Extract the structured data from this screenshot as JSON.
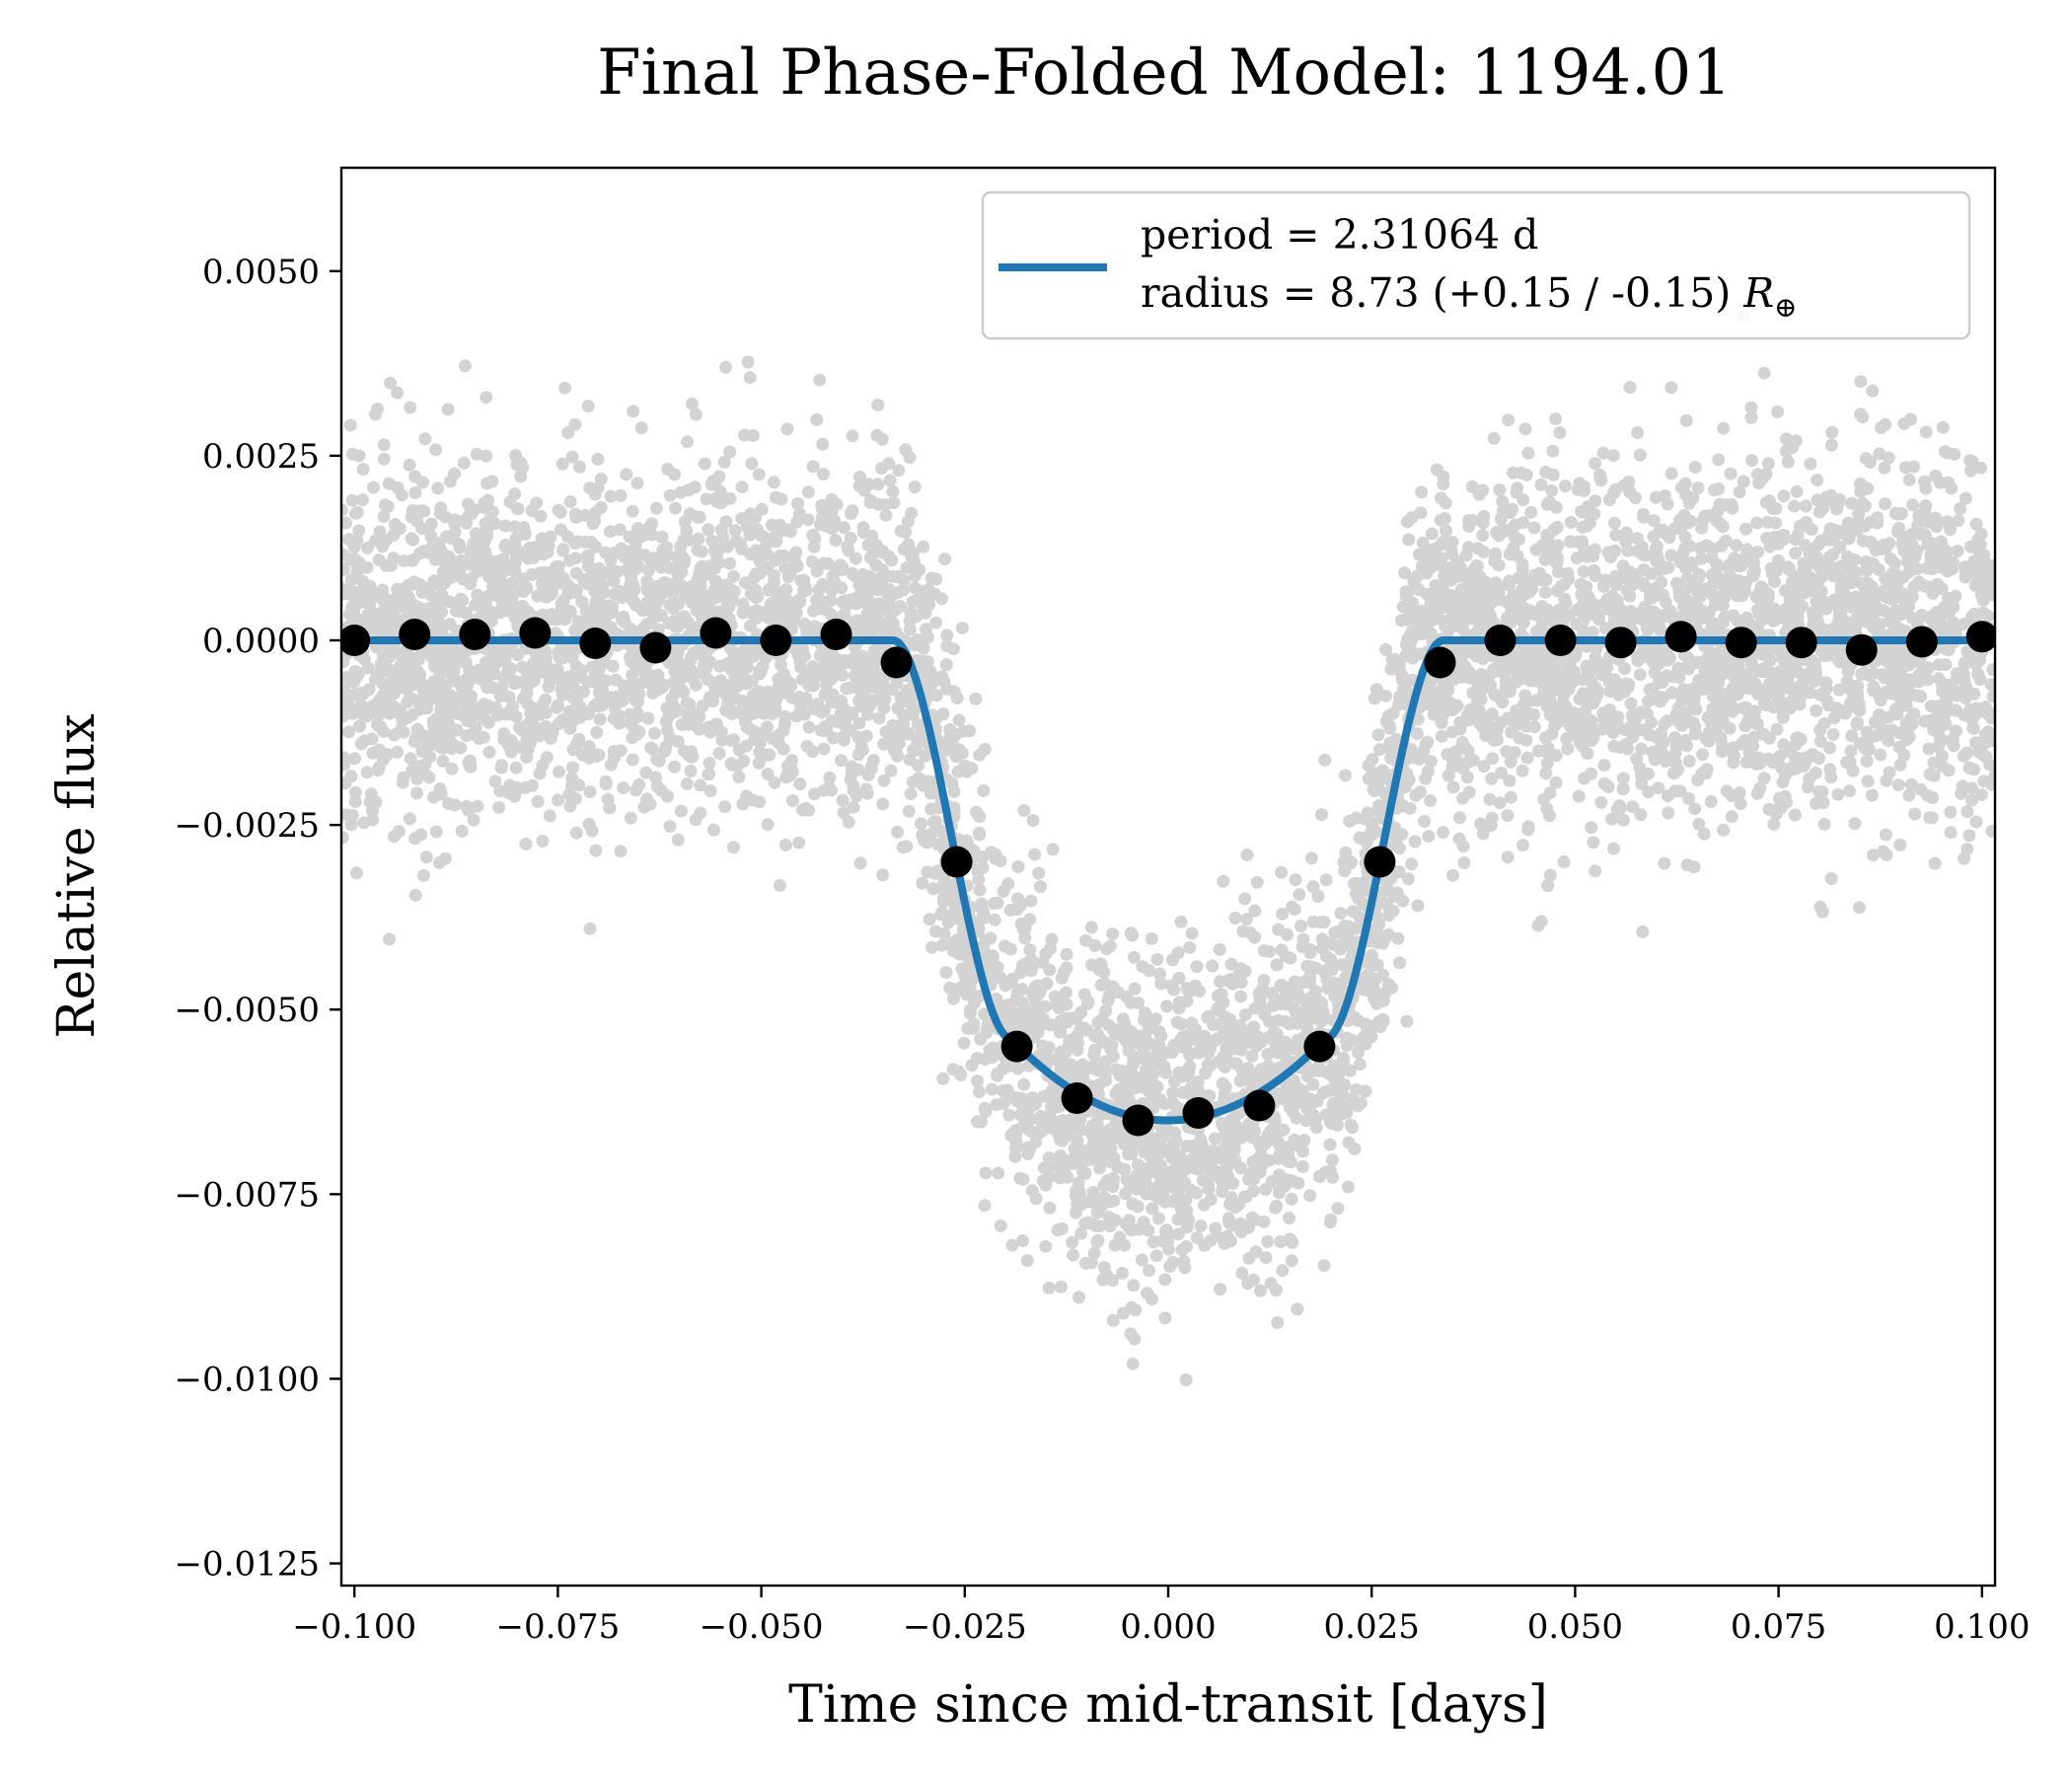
{
  "chart_data": {
    "type": "scatter",
    "title": "Final Phase-Folded Model: 1194.01",
    "xlabel": "Time since mid-transit [days]",
    "ylabel": "Relative flux",
    "xlim": [
      -0.1016,
      0.1016
    ],
    "ylim": [
      -0.0128,
      0.0064
    ],
    "xticks": [
      -0.1,
      -0.075,
      -0.05,
      -0.025,
      0.0,
      0.025,
      0.05,
      0.075,
      0.1
    ],
    "xtick_labels": [
      "−0.100",
      "−0.075",
      "−0.050",
      "−0.025",
      "0.000",
      "0.025",
      "0.050",
      "0.075",
      "0.100"
    ],
    "yticks": [
      0.005,
      0.0025,
      0.0,
      -0.0025,
      -0.005,
      -0.0075,
      -0.01,
      -0.0125
    ],
    "ytick_labels": [
      "0.0050",
      "0.0025",
      "0.0000",
      "−0.0025",
      "−0.0050",
      "−0.0075",
      "−0.0100",
      "−0.0125"
    ],
    "grid": false,
    "legend_position": "top-right",
    "legend": {
      "line1": "period = 2.31064 d",
      "line2": "radius = 8.73 (+0.15 / -0.15) ",
      "line2_symbol": "R",
      "line2_subscript": "⊕"
    },
    "model": {
      "depth": -0.0065,
      "half_width": 0.0338,
      "ingress": 0.0145,
      "color": "#1f77b4"
    },
    "raw_data": {
      "color": "#d3d3d3",
      "n_points": 6500,
      "noise_sigma": 0.0012,
      "seed": 1194
    },
    "binned": {
      "x": [
        -0.1,
        -0.0926,
        -0.0852,
        -0.0778,
        -0.0704,
        -0.063,
        -0.0556,
        -0.0482,
        -0.0408,
        -0.0334,
        -0.026,
        -0.0186,
        -0.0112,
        -0.0037,
        0.0037,
        0.0112,
        0.0186,
        0.026,
        0.0334,
        0.0408,
        0.0482,
        0.0556,
        0.063,
        0.0704,
        0.0778,
        0.0852,
        0.0926,
        0.1
      ],
      "y": [
        0.0,
        8e-05,
        8e-05,
        0.0001,
        -4e-05,
        -0.0001,
        0.0001,
        0.0,
        8e-05,
        -0.0003,
        -0.003,
        -0.0055,
        -0.0062,
        -0.0065,
        -0.0064,
        -0.0063,
        -0.0055,
        -0.003,
        -0.0003,
        0.0,
        0.0,
        -3e-05,
        5e-05,
        -3e-05,
        -3e-05,
        -0.00013,
        -2e-05,
        5e-05
      ],
      "color": "#000000"
    }
  }
}
